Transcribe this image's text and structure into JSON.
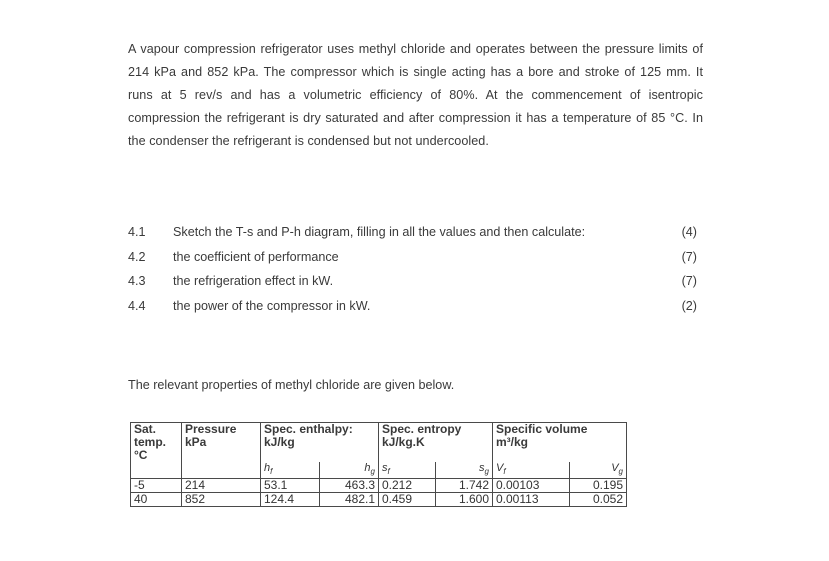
{
  "problem": {
    "paragraph": "A vapour compression refrigerator uses methyl chloride and operates between the pressure limits of 214 kPa and 852 kPa. The compressor which is single acting has a bore and stroke of 125 mm. It runs at 5 rev/s and has a volumetric efficiency of 80%. At the commencement of isentropic compression the refrigerant is dry saturated and after compression it has a temperature of 85 °C. In the condenser the refrigerant is condensed but not undercooled."
  },
  "questions": [
    {
      "num": "4.1",
      "text": "Sketch the T-s and P-h diagram, filling in all the values and then calculate:",
      "marks": "(4)"
    },
    {
      "num": "4.2",
      "text": "the coefficient of performance",
      "marks": "(7)"
    },
    {
      "num": "4.3",
      "text": "the refrigeration effect in kW.",
      "marks": "(7)"
    },
    {
      "num": "4.4",
      "text": "the power of the compressor in kW.",
      "marks": "(2)"
    }
  ],
  "intro": "The relevant properties of methyl chloride are given below.",
  "table": {
    "headers": {
      "temp": [
        "Sat.",
        "temp.",
        "°C"
      ],
      "pressure": [
        "Pressure",
        "kPa"
      ],
      "enthalpy": [
        "Spec. enthalpy:",
        "kJ/kg"
      ],
      "entropy": [
        "Spec. entropy",
        "kJ/kg.K"
      ],
      "volume": [
        "Specific volume",
        "m³/kg"
      ]
    },
    "symbols": {
      "hf": "hf",
      "hg": "hg",
      "sf": "sf",
      "sg": "sg",
      "vf": "Vf",
      "vg": "Vg"
    },
    "rows": [
      {
        "temp": "-5",
        "pressure": "214",
        "hf": "53.1",
        "hg": "463.3",
        "sf": "0.212",
        "sg": "1.742",
        "vf": "0.00103",
        "vg": "0.195"
      },
      {
        "temp": "40",
        "pressure": "852",
        "hf": "124.4",
        "hg": "482.1",
        "sf": "0.459",
        "sg": "1.600",
        "vf": "0.00113",
        "vg": "0.052"
      }
    ]
  }
}
